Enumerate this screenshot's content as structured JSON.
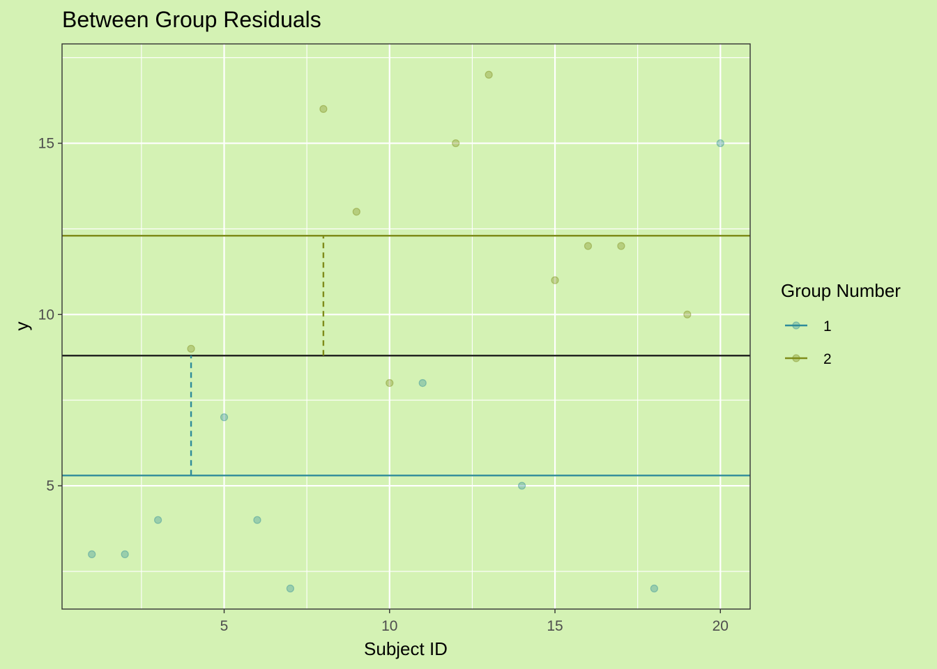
{
  "chart_data": {
    "type": "scatter",
    "title": "Between Group Residuals",
    "xlabel": "Subject ID",
    "ylabel": "y",
    "xlim": [
      0.1,
      20.9
    ],
    "ylim": [
      1.4,
      17.9
    ],
    "x_ticks": [
      5,
      10,
      15,
      20
    ],
    "y_ticks": [
      5,
      10,
      15
    ],
    "x_minor": [
      2.5,
      7.5,
      12.5,
      17.5
    ],
    "y_minor": [
      2.5,
      7.5,
      12.5,
      17.5
    ],
    "grid": true,
    "legend": {
      "title": "Group Number",
      "position": "right",
      "entries": [
        {
          "label": "1",
          "color": "#2e8b9a"
        },
        {
          "label": "2",
          "color": "#7f8c1a"
        }
      ]
    },
    "series": [
      {
        "name": "1",
        "color": "#2e8b9a",
        "points": [
          [
            1,
            3
          ],
          [
            2,
            3
          ],
          [
            3,
            4
          ],
          [
            5,
            7
          ],
          [
            6,
            4
          ],
          [
            7,
            2
          ],
          [
            11,
            8
          ],
          [
            14,
            5
          ],
          [
            18,
            2
          ],
          [
            20,
            15
          ]
        ]
      },
      {
        "name": "2",
        "color": "#7f8c1a",
        "points": [
          [
            4,
            9
          ],
          [
            8,
            16
          ],
          [
            9,
            13
          ],
          [
            10,
            8
          ],
          [
            12,
            15
          ],
          [
            13,
            17
          ],
          [
            15,
            11
          ],
          [
            16,
            12
          ],
          [
            17,
            12
          ],
          [
            19,
            10
          ]
        ]
      }
    ],
    "hlines": [
      {
        "name": "group-1-mean",
        "y": 5.3,
        "color": "#2e8b9a"
      },
      {
        "name": "group-2-mean",
        "y": 12.3,
        "color": "#7f8c1a"
      },
      {
        "name": "grand-mean",
        "y": 8.8,
        "color": "#1a1a1a"
      }
    ],
    "residual_segments": [
      {
        "name": "group-1",
        "x": 4,
        "y_from": 5.3,
        "y_to": 8.8,
        "color": "#2e8b9a"
      },
      {
        "name": "group-2",
        "x": 8,
        "y_from": 8.8,
        "y_to": 12.3,
        "color": "#7f8c1a"
      }
    ],
    "colors": {
      "background": "#d4f2b4",
      "panel_border": "#333333",
      "grid": "#ffffff"
    }
  }
}
